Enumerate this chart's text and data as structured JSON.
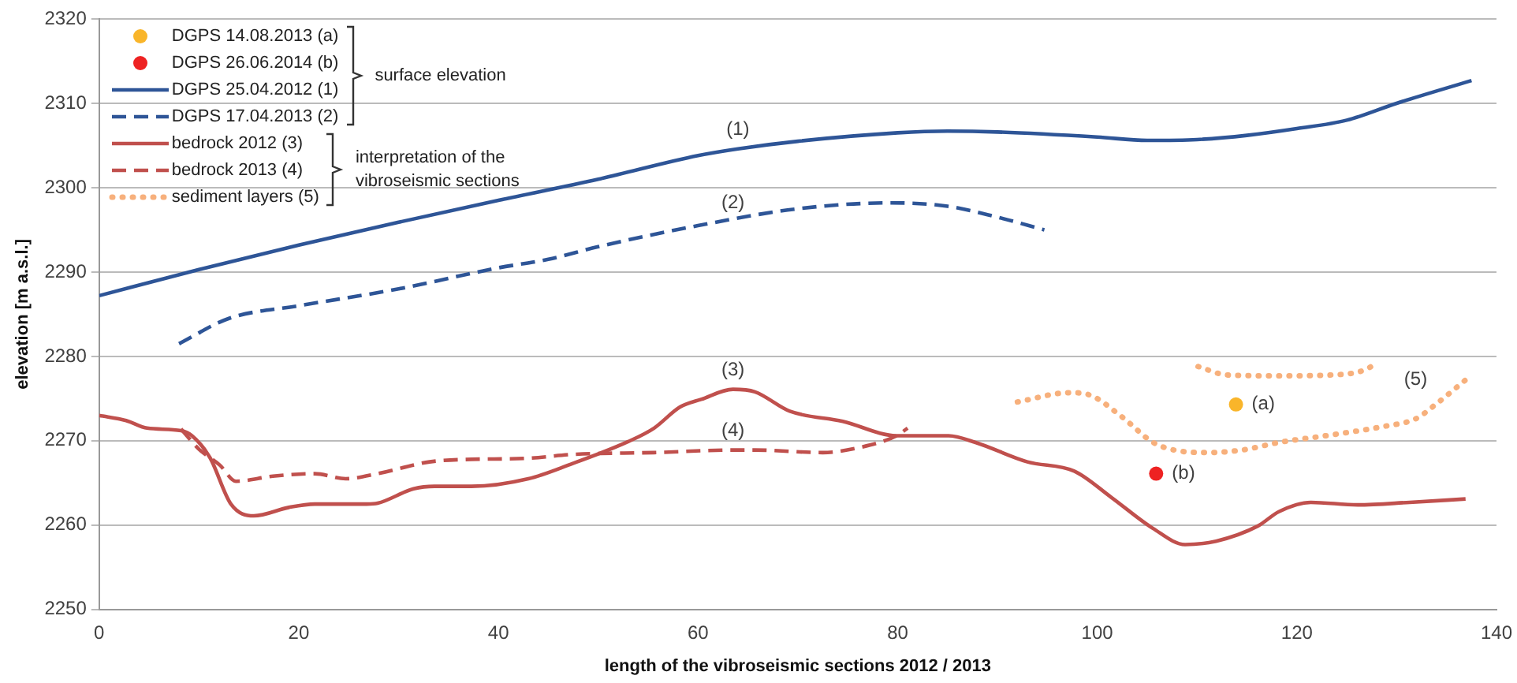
{
  "chart_data": {
    "type": "line",
    "xlabel": "length of the vibroseismic sections 2012 / 2013",
    "ylabel": "elevation [m a.s.l.]",
    "xlim": [
      0,
      140
    ],
    "xticks": [
      0,
      20,
      40,
      60,
      80,
      100,
      120,
      140
    ],
    "ylim": [
      2250,
      2320
    ],
    "yticks": [
      2250,
      2260,
      2270,
      2280,
      2290,
      2300,
      2310,
      2320
    ],
    "grid": "y",
    "legend": "top left",
    "series": [
      {
        "name": "DGPS 14.08.2013 (a)",
        "type": "scatter",
        "marker": "circle",
        "color": "#f9b52a",
        "x": [
          113.9
        ],
        "values": [
          2274.3
        ]
      },
      {
        "name": "DGPS 26.06.2014 (b)",
        "type": "scatter",
        "marker": "circle",
        "color": "#ee2222",
        "x": [
          105.9
        ],
        "values": [
          2266.1
        ]
      },
      {
        "name": "DGPS 25.04.2012 (1)",
        "type": "line",
        "line_style": "solid",
        "color": "#2e5597",
        "x": [
          0,
          10,
          20,
          30,
          40,
          50,
          60,
          64,
          70,
          80,
          85,
          90,
          100,
          105,
          110,
          115,
          120,
          125,
          130,
          137.5
        ],
        "values": [
          2287.2,
          2290.3,
          2293.2,
          2295.9,
          2298.5,
          2301,
          2303.8,
          2304.6,
          2305.5,
          2306.5,
          2306.7,
          2306.6,
          2306,
          2305.6,
          2305.7,
          2306.2,
          2307,
          2308,
          2310,
          2312.7
        ]
      },
      {
        "name": "DGPS 17.04.2013 (2)",
        "type": "line",
        "line_style": "dashed",
        "color": "#2e5597",
        "x": [
          8,
          13,
          20,
          30,
          40,
          45,
          50,
          60,
          70,
          79.3,
          85,
          90,
          94.7
        ],
        "values": [
          2281.5,
          2284.5,
          2286,
          2288,
          2290.5,
          2291.5,
          2293,
          2295.5,
          2297.5,
          2298.2,
          2297.8,
          2296.5,
          2295
        ]
      },
      {
        "name": "bedrock 2012 (3)",
        "type": "line",
        "line_style": "solid",
        "color": "#c0504d",
        "x": [
          0,
          2.7,
          4.8,
          8.2,
          9.3,
          11.1,
          13.2,
          15.5,
          19,
          21.6,
          26.8,
          27.9,
          31.5,
          33.6,
          37.3,
          43,
          47.2,
          53,
          55.6,
          58.2,
          60.3,
          63.5,
          65.7,
          69.2,
          74.5,
          79.9,
          85.1,
          87.8,
          93,
          97.7,
          101.4,
          105.6,
          108.8,
          111.9,
          116.1,
          118.2,
          121.4,
          126.1,
          131.3,
          136.9
        ],
        "values": [
          2273,
          2272.4,
          2271.5,
          2271.2,
          2270.6,
          2268,
          2262.5,
          2261.1,
          2262.1,
          2262.5,
          2262.5,
          2262.6,
          2264.3,
          2264.6,
          2264.6,
          2265.5,
          2267.2,
          2269.9,
          2271.5,
          2274,
          2274.9,
          2276.1,
          2275.8,
          2273.5,
          2272.3,
          2270.6,
          2270.6,
          2269.8,
          2267.5,
          2266.4,
          2263.3,
          2259.6,
          2257.7,
          2258.1,
          2259.9,
          2261.6,
          2262.7,
          2262.4,
          2262.7,
          2263.1
        ]
      },
      {
        "name": "bedrock 2013 (4)",
        "type": "line",
        "line_style": "dashed",
        "color": "#c0504d",
        "x": [
          8.2,
          10,
          12.1,
          13.7,
          17.4,
          21.6,
          24.7,
          27.9,
          33.1,
          37.3,
          42.5,
          47.7,
          55.6,
          63.5,
          65.7,
          72.5,
          76.2,
          79.9,
          81
        ],
        "values": [
          2271.4,
          2269,
          2267.1,
          2265.2,
          2265.8,
          2266.1,
          2265.5,
          2266.1,
          2267.5,
          2267.8,
          2267.9,
          2268.4,
          2268.6,
          2268.9,
          2268.9,
          2268.6,
          2269.2,
          2270.6,
          2271.5
        ]
      },
      {
        "name": "sediment layers (5)",
        "type": "line",
        "line_style": "dotted",
        "color": "#f7b07c",
        "x": [
          92,
          97.2,
          99.3,
          102.4,
          105.6,
          107.7,
          110.9,
          114.5,
          118.2,
          123.5,
          128.7,
          131.9,
          134,
          136.9,
          null,
          110.1,
          113,
          118.2,
          123.5,
          126.6,
          127.9
        ],
        "values": [
          2274.6,
          2275.7,
          2275.4,
          2272.9,
          2269.8,
          2268.9,
          2268.6,
          2268.9,
          2269.8,
          2270.7,
          2271.7,
          2272.6,
          2274.4,
          2277.2,
          null,
          2278.8,
          2277.8,
          2277.7,
          2277.8,
          2278.3,
          2279.1
        ]
      }
    ],
    "annotations": [
      "surface elevation",
      "interpretation of the vibroseismic sections",
      {
        "text": "(1)",
        "x": 64,
        "y": 2304.6
      },
      {
        "text": "(2)",
        "x": 63.5,
        "y": 2295.9
      },
      {
        "text": "(3)",
        "x": 63.5,
        "y": 2276.1
      },
      {
        "text": "(4)",
        "x": 63.5,
        "y": 2268.9
      },
      {
        "text": "(5)",
        "x": 127.9,
        "y": 2279.1
      },
      {
        "text": "(a)",
        "x": 113.9,
        "y": 2274.3
      },
      {
        "text": "(b)",
        "x": 105.9,
        "y": 2266.1
      }
    ]
  }
}
